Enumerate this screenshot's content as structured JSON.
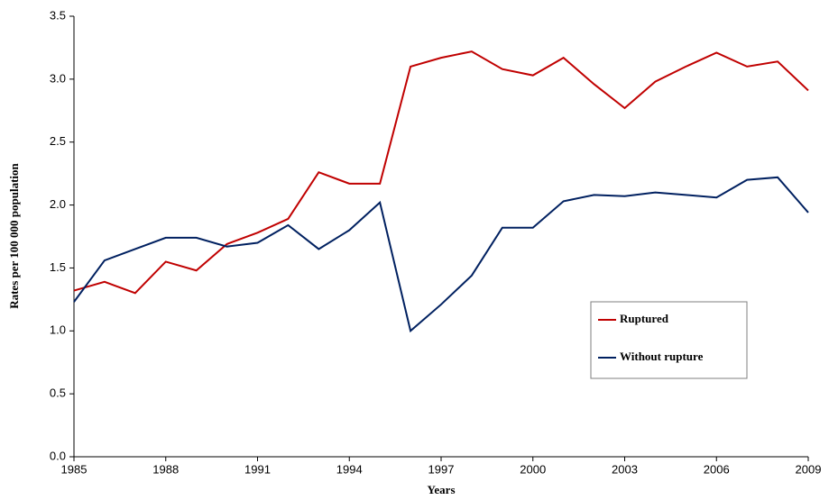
{
  "chart_data": {
    "type": "line",
    "x_label": "Years",
    "y_label": "Rates per 100 000 population",
    "x": [
      1985,
      1986,
      1987,
      1988,
      1989,
      1990,
      1991,
      1992,
      1993,
      1994,
      1995,
      1996,
      1997,
      1998,
      1999,
      2000,
      2001,
      2002,
      2003,
      2004,
      2005,
      2006,
      2007,
      2008,
      2009
    ],
    "series": [
      {
        "name": "Ruptured",
        "color": "#c00000",
        "values": [
          1.32,
          1.39,
          1.3,
          1.55,
          1.48,
          1.69,
          1.78,
          1.89,
          2.26,
          2.17,
          2.17,
          3.1,
          3.17,
          3.22,
          3.08,
          3.03,
          3.17,
          2.96,
          2.77,
          2.98,
          3.1,
          3.21,
          3.1,
          3.14,
          2.91
        ]
      },
      {
        "name": "Without rupture",
        "color": "#002060",
        "values": [
          1.23,
          1.56,
          1.65,
          1.74,
          1.74,
          1.67,
          1.7,
          1.84,
          1.65,
          1.8,
          2.02,
          1.0,
          1.21,
          1.44,
          1.82,
          1.82,
          2.03,
          2.08,
          2.07,
          2.1,
          2.08,
          2.06,
          2.2,
          2.22,
          1.94
        ]
      }
    ],
    "xlim": [
      1985,
      2009
    ],
    "xticks": [
      1985,
      1988,
      1991,
      1994,
      1997,
      2000,
      2003,
      2006,
      2009
    ],
    "ylim": [
      0,
      3.5
    ],
    "yticks": [
      {
        "value": 0,
        "label": "0.0"
      },
      0.5,
      {
        "value": 1,
        "label": "1.0"
      },
      1.5,
      {
        "value": 2,
        "label": "2.0"
      },
      2.5,
      {
        "value": 3,
        "label": "3.0"
      },
      3.5
    ],
    "grid": false,
    "legend": "lower-right"
  }
}
